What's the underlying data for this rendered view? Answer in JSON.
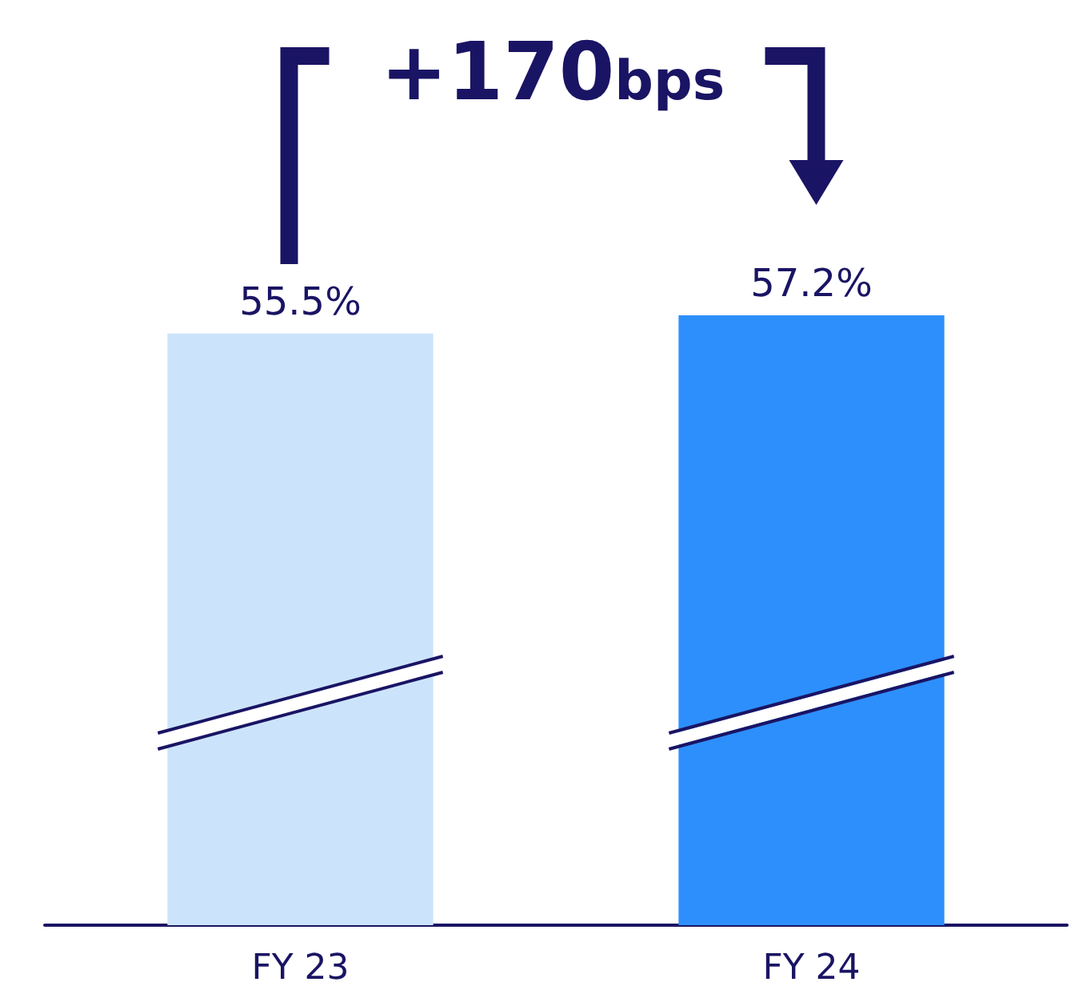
{
  "chart_data": {
    "type": "bar",
    "categories": [
      "FY 23",
      "FY 24"
    ],
    "values": [
      55.5,
      57.2
    ],
    "colors": [
      "#cce4fb",
      "#2d8ffc"
    ],
    "data_labels": true,
    "value_labels": [
      "55.5%",
      "57.2%"
    ],
    "annotations": [
      "+170bps"
    ]
  }
}
